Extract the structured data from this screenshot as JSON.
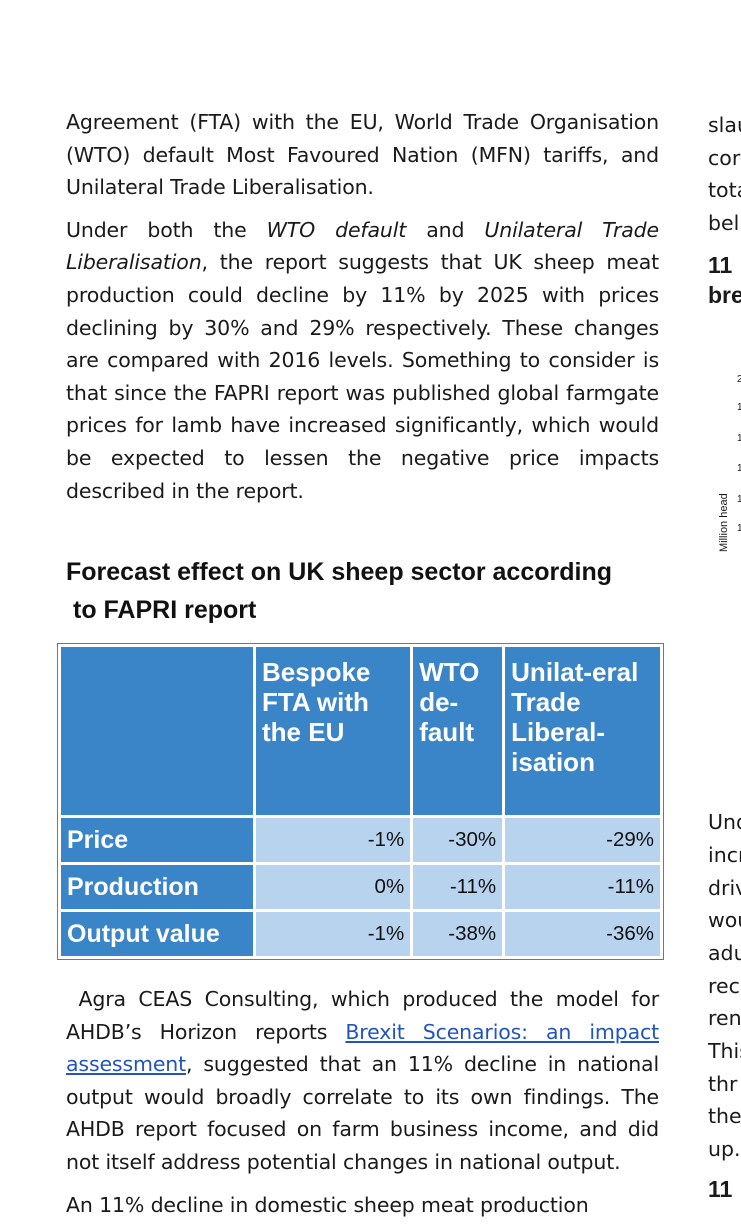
{
  "paragraphs": {
    "p1": "Agreement (FTA) with the EU, World Trade Organisation (WTO) default Most Favoured Nation (MFN) tariffs, and Unilateral Trade Liberalisation.",
    "p2_a": "Under both the ",
    "p2_em1": "WTO default",
    "p2_b": " and ",
    "p2_em2": "Unilateral Trade Liberalisation",
    "p2_c": ", the report suggests that UK sheep meat production could decline by 11% by 2025 with prices declining by 30% and 29% respectively. These changes are compared with 2016 levels. Something to consider is that since the FAPRI report was published global farmgate prices for lamb have increased significantly, which would be expected to lessen the negative price impacts described in the report.",
    "p3_a": "Agra CEAS Consulting, which produced the model for AHDB’s Horizon reports ",
    "p3_link": "Brexit Scenarios: an impact assessment",
    "p3_b": ", suggested that an 11% decline in national output would broadly correlate to its own findings. The AHDB report focused on farm business income, and did not itself address potential changes in national output.",
    "p4": "An 11% decline in domestic sheep meat production"
  },
  "heading": {
    "line1": "Forecast effect on UK sheep sector according",
    "line2": "to FAPRI report"
  },
  "table": {
    "headers": [
      "Bespoke FTA with the EU",
      "WTO de-fault",
      "Unilat-eral Trade Liberal-isation"
    ],
    "rows": [
      {
        "label": "Price",
        "values": [
          "-1%",
          "-30%",
          "-29%"
        ]
      },
      {
        "label": "Production",
        "values": [
          "0%",
          "-11%",
          "-11%"
        ]
      },
      {
        "label": "Output value",
        "values": [
          "-1%",
          "-38%",
          "-36%"
        ]
      }
    ]
  },
  "right_column": {
    "top_fragments": [
      "slau",
      "cor",
      "tota",
      "bel"
    ],
    "bold_fragments": [
      "11",
      "bre"
    ],
    "tick_fragments": [
      "2",
      "1",
      "1",
      "1",
      "1",
      "1"
    ],
    "axis_label": "Million head",
    "lower_fragments": [
      "Und",
      "incr",
      "driv",
      "wou",
      "adu",
      "rec",
      "ren",
      "This",
      "thr",
      "the",
      "up."
    ],
    "bottom_bold": "11"
  }
}
